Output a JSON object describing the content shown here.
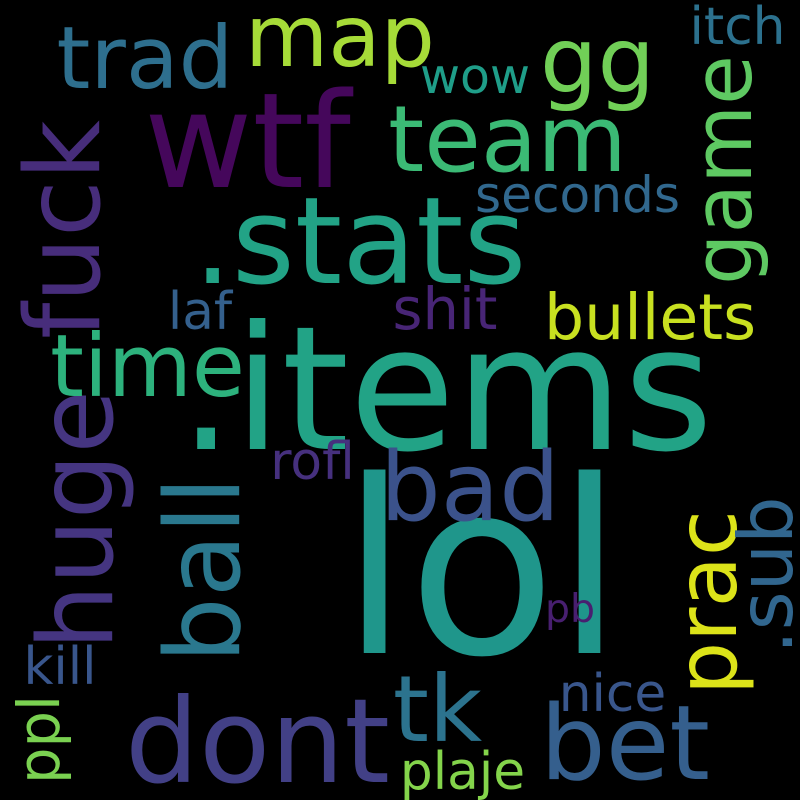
{
  "background_color": "#000000",
  "words": [
    {
      "text": "lol",
      "color": "#1f968b",
      "orientation": "horizontal"
    },
    {
      "text": ".items",
      "color": "#22a386",
      "orientation": "horizontal"
    },
    {
      "text": ".stats",
      "color": "#22a386",
      "orientation": "horizontal"
    },
    {
      "text": "wtf",
      "color": "#45075b",
      "orientation": "horizontal"
    },
    {
      "text": "map",
      "color": "#a6db38",
      "orientation": "horizontal"
    },
    {
      "text": "gg",
      "color": "#71cf57",
      "orientation": "horizontal"
    },
    {
      "text": "trad",
      "color": "#2e6f8e",
      "orientation": "horizontal"
    },
    {
      "text": "team",
      "color": "#3bba75",
      "orientation": "horizontal"
    },
    {
      "text": "game",
      "color": "#5ec962",
      "orientation": "vertical"
    },
    {
      "text": "fuck",
      "color": "#472d7b",
      "orientation": "vertical"
    },
    {
      "text": "huge",
      "color": "#453581",
      "orientation": "vertical"
    },
    {
      "text": "bad",
      "color": "#3b528b",
      "orientation": "horizontal"
    },
    {
      "text": "ball",
      "color": "#2a788e",
      "orientation": "vertical"
    },
    {
      "text": "prac",
      "color": "#dce319",
      "orientation": "vertical"
    },
    {
      "text": ".sub",
      "color": "#31668e",
      "orientation": "vertical"
    },
    {
      "text": "dont",
      "color": "#424086",
      "orientation": "horizontal"
    },
    {
      "text": "tk",
      "color": "#2c738e",
      "orientation": "horizontal"
    },
    {
      "text": "bet",
      "color": "#355f8d",
      "orientation": "horizontal"
    },
    {
      "text": "time",
      "color": "#2db27d",
      "orientation": "horizontal"
    },
    {
      "text": "bullets",
      "color": "#c8e020",
      "orientation": "horizontal"
    },
    {
      "text": "itch",
      "color": "#2c718e",
      "orientation": "horizontal"
    },
    {
      "text": "wow",
      "color": "#1f9e89",
      "orientation": "horizontal"
    },
    {
      "text": "seconds",
      "color": "#31688e",
      "orientation": "horizontal"
    },
    {
      "text": "laf",
      "color": "#34608d",
      "orientation": "horizontal"
    },
    {
      "text": "shit",
      "color": "#482576",
      "orientation": "horizontal"
    },
    {
      "text": "rofl",
      "color": "#46307e",
      "orientation": "horizontal"
    },
    {
      "text": "pb",
      "color": "#481f70",
      "orientation": "horizontal"
    },
    {
      "text": "kill",
      "color": "#39568c",
      "orientation": "horizontal"
    },
    {
      "text": "nice",
      "color": "#39568c",
      "orientation": "horizontal"
    },
    {
      "text": "ppl",
      "color": "#7ad151",
      "orientation": "vertical"
    },
    {
      "text": "plaje",
      "color": "#84d44b",
      "orientation": "horizontal"
    }
  ]
}
